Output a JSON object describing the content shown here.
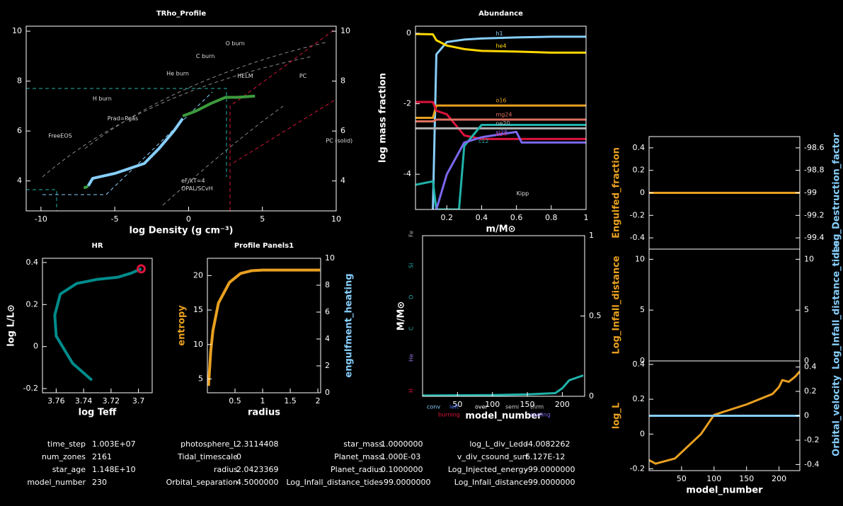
{
  "chart_data": [
    {
      "type": "line",
      "title": "TRho_Profile",
      "xlabel": "log Density (g cm⁻³)",
      "xlim": [
        -11,
        10
      ],
      "xticks": [
        -10,
        -5,
        0,
        5,
        10
      ],
      "ylim": [
        2.8,
        10.2
      ],
      "yticks": [
        4,
        6,
        8,
        10
      ],
      "y2lim": [
        2.8,
        10.2
      ],
      "y2ticks": [
        4,
        6,
        8,
        10
      ],
      "annotations": [
        "O burn",
        "C burn",
        "He burn",
        "HELM",
        "PC",
        "H burn",
        "Prad=Pgas",
        "FreeEOS",
        "PC (solid)",
        "eF/kT=4",
        "OPAL/SCvH"
      ],
      "series": [
        {
          "color": "#87cefa",
          "x": [
            -6.8,
            -6.5,
            -5,
            -3,
            -2,
            -1,
            -0.4
          ],
          "values": [
            3.8,
            4.1,
            4.3,
            4.7,
            5.3,
            6.0,
            6.5
          ]
        },
        {
          "color": "#3c9a3c",
          "x": [
            -0.4,
            0.5,
            1.5,
            2.5,
            3.3,
            4.5
          ],
          "values": [
            6.6,
            6.8,
            7.1,
            7.35,
            7.35,
            7.4
          ]
        },
        {
          "color": "#3c9a3c",
          "x": [
            -7.1,
            -6.8
          ],
          "values": [
            3.72,
            3.78
          ]
        }
      ]
    },
    {
      "type": "line",
      "title": "Abundance",
      "xlabel": "m/M⊙",
      "ylabel": "log mass fraction",
      "xlim": [
        0.02,
        1
      ],
      "xticks": [
        0.2,
        0.4,
        0.6,
        0.8,
        1
      ],
      "ylim": [
        -5,
        0.2
      ],
      "yticks": [
        -4,
        -2,
        0
      ],
      "annotations": [
        "Kipp"
      ],
      "series": [
        {
          "name": "h1",
          "color": "#87cefa",
          "x": [
            0.02,
            0.12,
            0.14,
            0.2,
            0.3,
            0.4,
            0.6,
            0.8,
            1.0
          ],
          "values": [
            null,
            -5,
            -0.6,
            -0.25,
            -0.18,
            -0.15,
            -0.12,
            -0.1,
            -0.1
          ]
        },
        {
          "name": "he4",
          "color": "#ffd700",
          "x": [
            0.02,
            0.12,
            0.14,
            0.2,
            0.3,
            0.4,
            0.6,
            0.8,
            1.0
          ],
          "values": [
            -0.02,
            -0.03,
            -0.2,
            -0.35,
            -0.45,
            -0.5,
            -0.52,
            -0.55,
            -0.55
          ]
        },
        {
          "name": "o16",
          "color": "#e8a020",
          "x": [
            0.02,
            0.12,
            0.14,
            0.2,
            0.3,
            0.4,
            0.6,
            0.8,
            1.0
          ],
          "values": [
            -2.4,
            -2.4,
            -2.05,
            -2.05,
            -2.05,
            -2.05,
            -2.05,
            -2.05,
            -2.05
          ]
        },
        {
          "name": "n14",
          "color": "#dc143c",
          "x": [
            0.02,
            0.12,
            0.14,
            0.2,
            0.3,
            0.4,
            0.6,
            0.8,
            1.0
          ],
          "values": [
            -1.95,
            -1.95,
            -2.2,
            -2.3,
            -2.9,
            -3.0,
            -3.0,
            -3.0,
            -3.0
          ]
        },
        {
          "name": "mg24",
          "color": "#e07060",
          "x": [
            0.02,
            0.12,
            0.14,
            0.2,
            0.3,
            0.4,
            0.6,
            0.8,
            1.0
          ],
          "values": [
            -2.5,
            -2.5,
            -2.45,
            -2.45,
            -2.45,
            -2.45,
            -2.45,
            -2.45,
            -2.45
          ]
        },
        {
          "name": "ne20",
          "color": "#b0b0b0",
          "x": [
            0.02,
            0.12,
            0.14,
            0.2,
            0.3,
            0.4,
            0.6,
            0.8,
            1.0
          ],
          "values": [
            -2.7,
            -2.7,
            -2.7,
            -2.7,
            -2.7,
            -2.7,
            -2.7,
            -2.7,
            -2.7
          ]
        },
        {
          "name": "c12",
          "color": "#20b2aa",
          "x": [
            0.02,
            0.12,
            0.14,
            0.2,
            0.27,
            0.3,
            0.4,
            0.6,
            0.8,
            1.0
          ],
          "values": [
            -4.3,
            -4.2,
            -5,
            -5,
            -5,
            -3.2,
            -2.6,
            -2.6,
            -2.6,
            -2.6
          ]
        },
        {
          "name": "si28",
          "color": "#7b68ee",
          "x": [
            0.02,
            0.12,
            0.14,
            0.2,
            0.3,
            0.4,
            0.6,
            0.63,
            0.8,
            1.0
          ],
          "values": [
            null,
            null,
            -5,
            -4,
            -3.1,
            -2.95,
            -2.8,
            -3.1,
            -3.1,
            -3.1
          ]
        }
      ]
    },
    {
      "type": "line",
      "title": "HR",
      "xlabel": "log Teff",
      "ylabel": "log L/L⊙",
      "xlim": [
        3.77,
        3.69
      ],
      "xticks": [
        3.76,
        3.74,
        3.72,
        3.7
      ],
      "ylim": [
        -0.22,
        0.42
      ],
      "yticks": [
        -0.2,
        0,
        0.2,
        0.4
      ],
      "series": [
        {
          "color": "#008b8b",
          "x": [
            3.734,
            3.748,
            3.76,
            3.761,
            3.757,
            3.745,
            3.73,
            3.715,
            3.705,
            3.698
          ],
          "values": [
            -0.16,
            -0.08,
            0.05,
            0.15,
            0.25,
            0.3,
            0.32,
            0.33,
            0.35,
            0.37
          ]
        }
      ]
    },
    {
      "type": "line",
      "title": "Profile Panels1",
      "xlabel": "radius",
      "ylabel": "entropy",
      "y2label": "engulfment_heating",
      "xlim": [
        0,
        2.05
      ],
      "xticks": [
        0.5,
        1,
        1.5,
        2
      ],
      "ylim": [
        3,
        22.5
      ],
      "yticks": [
        5,
        10,
        15,
        20
      ],
      "y2lim": [
        0,
        10
      ],
      "y2ticks": [
        0,
        2,
        4,
        6,
        8,
        10
      ],
      "series": [
        {
          "color": "#e8a020",
          "x": [
            0.02,
            0.06,
            0.1,
            0.2,
            0.4,
            0.6,
            0.8,
            1.0,
            2.04
          ],
          "values": [
            4,
            9,
            12,
            16,
            19,
            20.3,
            20.7,
            20.8,
            20.8
          ]
        }
      ]
    },
    {
      "type": "line",
      "xlabel": "model_number",
      "ylabel": "M/M⊙",
      "xlim": [
        0,
        232
      ],
      "xticks": [
        50,
        100,
        150,
        200
      ],
      "ylim": [
        0,
        1
      ],
      "y2lim": [
        0,
        1
      ],
      "y2ticks": [
        0,
        0.5,
        1
      ],
      "side_labels": [
        "H",
        "He",
        "C",
        "O",
        "Si",
        "Fe"
      ],
      "legend": [
        "conv",
        "left",
        "over",
        "semi",
        "thrm",
        "burning",
        "cooling"
      ],
      "series": [
        {
          "color": "#20b2aa",
          "x": [
            0,
            100,
            150,
            190,
            200,
            210,
            230
          ],
          "values": [
            0.005,
            0.008,
            0.012,
            0.02,
            0.05,
            0.1,
            0.13
          ]
        }
      ]
    },
    {
      "type": "line",
      "ylabel": "Engulfed_fraction",
      "y2label": "Log_Destruction_factor",
      "xlim": [
        0,
        232
      ],
      "ylim": [
        -0.5,
        0.5
      ],
      "yticks": [
        -0.4,
        -0.2,
        0,
        0.2,
        0.4
      ],
      "y2lim": [
        -99.5,
        -98.5
      ],
      "y2ticks": [
        -99.4,
        -99.2,
        -99,
        -98.8,
        -98.6
      ],
      "series": [
        {
          "color": "#e8a020",
          "x": [
            0,
            232
          ],
          "values": [
            0,
            0
          ]
        }
      ]
    },
    {
      "type": "line",
      "ylabel": "Log_Infall_distance",
      "y2label": "Log_Infall_distance_tides",
      "xlim": [
        0,
        232
      ],
      "ylim": [
        0,
        11
      ],
      "yticks": [
        0,
        5,
        10
      ],
      "y2lim": [
        0,
        11
      ],
      "y2ticks": [
        0,
        5,
        10
      ]
    },
    {
      "type": "line",
      "xlabel": "model_number",
      "ylabel": "log_L",
      "y2label": "Orbital_velocity",
      "xlim": [
        0,
        232
      ],
      "xticks": [
        50,
        100,
        150,
        200
      ],
      "ylim": [
        -0.21,
        0.42
      ],
      "yticks": [
        -0.2,
        0,
        0.2,
        0.4
      ],
      "y2lim": [
        -0.45,
        0.45
      ],
      "y2ticks": [
        -0.4,
        -0.2,
        0,
        0.2,
        0.4
      ],
      "series": [
        {
          "color": "#e8a020",
          "x": [
            0,
            10,
            40,
            80,
            100,
            150,
            190,
            200,
            205,
            215,
            225,
            232
          ],
          "values": [
            -0.15,
            -0.17,
            -0.14,
            0.0,
            0.11,
            0.17,
            0.23,
            0.27,
            0.31,
            0.3,
            0.33,
            0.36
          ]
        },
        {
          "color": "#87cefa",
          "axis": "y2",
          "x": [
            0,
            232
          ],
          "values": [
            0,
            0
          ]
        }
      ]
    }
  ],
  "summary_table": {
    "rows": [
      [
        "time_step",
        "1.003E+07",
        "photosphere_L",
        "2.3114408",
        "star_mass",
        "1.0000000",
        "log_L_div_Ledd",
        "-4.0082262"
      ],
      [
        "num_zones",
        "2161",
        "Tidal_timescale",
        "0",
        "Planet_mass",
        "1.000E-03",
        "v_div_csound_surf",
        "6.127E-12"
      ],
      [
        "star_age",
        "1.148E+10",
        "radius",
        "2.0423369",
        "Planet_radius",
        "0.1000000",
        "Log_Injected_energy",
        "-99.0000000"
      ],
      [
        "model_number",
        "230",
        "Orbital_separation",
        "4.5000000",
        "Log_Infall_distance_tides",
        "-99.0000000",
        "Log_Infall_distance",
        "-99.0000000"
      ]
    ]
  }
}
